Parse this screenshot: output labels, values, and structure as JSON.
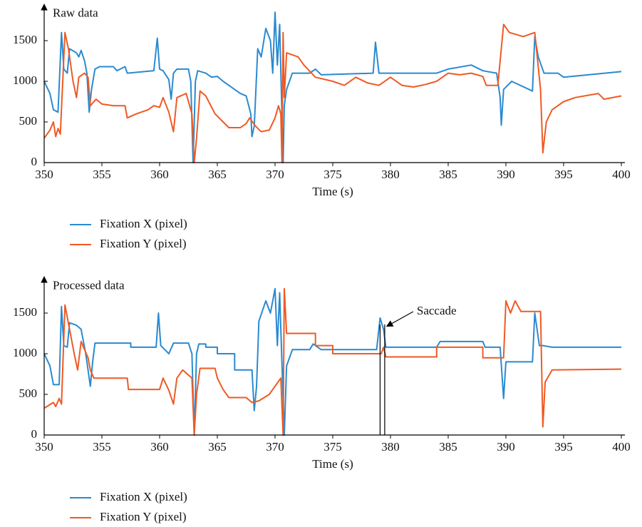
{
  "chart_data": [
    {
      "type": "line",
      "title": "Raw data",
      "xlabel": "Time (s)",
      "xlim": [
        350,
        400
      ],
      "ylim": [
        0,
        1900
      ],
      "xticks": [
        350,
        355,
        360,
        365,
        370,
        375,
        380,
        385,
        390,
        395,
        400
      ],
      "yticks": [
        0,
        500,
        1000,
        1500
      ],
      "series": [
        {
          "name": "Fixation X (pixel)",
          "color": "#2a8ad0",
          "x": [
            350,
            350.5,
            350.8,
            351.2,
            351.5,
            351.7,
            352,
            352.2,
            352.8,
            353,
            353.2,
            353.5,
            353.7,
            353.9,
            354.1,
            354.4,
            354.8,
            356,
            356.3,
            357,
            357.2,
            359.5,
            359.8,
            360,
            360.3,
            360.8,
            361,
            361.2,
            361.5,
            362.5,
            362.7,
            362.9,
            363.1,
            363.3,
            364,
            364.5,
            365,
            365.5,
            366,
            366.5,
            367,
            367.5,
            367.9,
            368,
            368.2,
            368.5,
            368.8,
            369.2,
            369.6,
            369.8,
            370,
            370.2,
            370.4,
            370.7,
            370.8,
            371,
            371.5,
            373,
            373.5,
            374,
            378.5,
            378.7,
            379,
            384,
            385,
            387,
            388,
            389.2,
            389.5,
            389.6,
            389.8,
            390.5,
            392.3,
            392.5,
            392.8,
            393.3,
            394.5,
            395,
            400
          ],
          "values": [
            1000,
            850,
            650,
            620,
            1600,
            1150,
            1100,
            1400,
            1350,
            1300,
            1380,
            1250,
            1100,
            620,
            900,
            1150,
            1180,
            1180,
            1130,
            1180,
            1100,
            1130,
            1530,
            1150,
            1130,
            1020,
            780,
            1100,
            1150,
            1150,
            1000,
            0,
            1000,
            1130,
            1100,
            1050,
            1060,
            1000,
            950,
            900,
            850,
            820,
            600,
            320,
            450,
            1400,
            1300,
            1650,
            1500,
            1100,
            1850,
            1200,
            1700,
            0,
            700,
            900,
            1100,
            1100,
            1150,
            1080,
            1100,
            1480,
            1100,
            1100,
            1150,
            1200,
            1130,
            1100,
            800,
            460,
            900,
            1000,
            880,
            1550,
            1300,
            1100,
            1100,
            1050,
            1120
          ]
        },
        {
          "name": "Fixation Y (pixel)",
          "color": "#ef5a24",
          "x": [
            350,
            350.5,
            350.8,
            351,
            351.2,
            351.4,
            351.8,
            352.1,
            352.5,
            352.8,
            353,
            353.5,
            353.8,
            354,
            354.5,
            355,
            356,
            357,
            357.2,
            358,
            359,
            359.5,
            360,
            360.3,
            360.8,
            361.2,
            361.5,
            362.3,
            362.8,
            363,
            363.2,
            363.5,
            364,
            364.8,
            365.5,
            366,
            367,
            367.5,
            367.8,
            368.3,
            368.8,
            369.5,
            370,
            370.3,
            370.5,
            370.6,
            370.7,
            370.8,
            371,
            372,
            372.5,
            373.5,
            375,
            376,
            377,
            378,
            379,
            380,
            381,
            382,
            383,
            384,
            385,
            386,
            387,
            388,
            388.3,
            389.3,
            389.8,
            390.3,
            391.5,
            392.5,
            393,
            393.2,
            393.5,
            394,
            395,
            396,
            398,
            398.5,
            400
          ],
          "values": [
            300,
            400,
            500,
            320,
            420,
            350,
            1600,
            1400,
            1000,
            800,
            1050,
            1100,
            1050,
            700,
            780,
            720,
            700,
            700,
            550,
            600,
            650,
            700,
            680,
            800,
            620,
            380,
            800,
            850,
            600,
            0,
            300,
            880,
            820,
            600,
            500,
            430,
            430,
            480,
            550,
            450,
            380,
            400,
            550,
            700,
            600,
            0,
            1600,
            800,
            1350,
            1300,
            1200,
            1050,
            1000,
            950,
            1050,
            980,
            950,
            1050,
            950,
            930,
            960,
            1000,
            1100,
            1080,
            1100,
            1060,
            950,
            950,
            1700,
            1600,
            1550,
            1600,
            900,
            120,
            500,
            650,
            750,
            800,
            850,
            780,
            820
          ]
        }
      ]
    },
    {
      "type": "line",
      "title": "Processed data",
      "xlabel": "Time (s)",
      "xlim": [
        350,
        400
      ],
      "ylim": [
        0,
        1900
      ],
      "xticks": [
        350,
        355,
        360,
        365,
        370,
        375,
        380,
        385,
        390,
        395,
        400
      ],
      "yticks": [
        0,
        500,
        1000,
        1500
      ],
      "annotation": {
        "text": "Saccade",
        "x": [
          379.1,
          379.5
        ]
      },
      "series": [
        {
          "name": "Fixation X (pixel)",
          "color": "#2a8ad0",
          "x": [
            350,
            350.5,
            350.8,
            351.3,
            351.5,
            351.7,
            352,
            352.2,
            352.8,
            353.2,
            353.6,
            354,
            354.2,
            354.4,
            357.5,
            357.5,
            359.7,
            359.9,
            360.1,
            360.8,
            361.2,
            362.5,
            362.8,
            363,
            363.2,
            363.4,
            364,
            364,
            365,
            365,
            366.5,
            366.5,
            368,
            368.2,
            368.4,
            368.6,
            369.2,
            369.6,
            370,
            370.2,
            370.4,
            370.8,
            371,
            371.5,
            373,
            373.3,
            374,
            378.8,
            379.1,
            379.4,
            379.6,
            384,
            384.3,
            388,
            388.2,
            389.5,
            389.8,
            390,
            392.3,
            392.5,
            392.9,
            393.2,
            394,
            400
          ],
          "values": [
            1000,
            850,
            620,
            620,
            1580,
            1100,
            1080,
            1380,
            1350,
            1300,
            1000,
            600,
            900,
            1130,
            1130,
            1080,
            1080,
            1500,
            1100,
            1000,
            1130,
            1130,
            1000,
            0,
            1000,
            1120,
            1120,
            1080,
            1080,
            1000,
            1000,
            800,
            800,
            300,
            600,
            1400,
            1650,
            1500,
            1800,
            1100,
            1750,
            0,
            850,
            1050,
            1050,
            1120,
            1050,
            1050,
            1440,
            1300,
            1080,
            1080,
            1150,
            1150,
            1080,
            1080,
            450,
            900,
            900,
            1500,
            1100,
            1100,
            1080,
            1080
          ]
        },
        {
          "name": "Fixation Y (pixel)",
          "color": "#ef5a24",
          "x": [
            350,
            350.8,
            351,
            351.3,
            351.5,
            351.8,
            352.2,
            352.6,
            352.9,
            353.2,
            353.8,
            354,
            354.3,
            357.2,
            357.3,
            360,
            360.3,
            360.8,
            361.2,
            361.5,
            362,
            362.8,
            363,
            363.2,
            363.5,
            364.8,
            365,
            365.5,
            366,
            367.5,
            368,
            368.6,
            369.5,
            370,
            370.5,
            370.7,
            370.8,
            371,
            373.5,
            373.5,
            375,
            375,
            379.2,
            379.4,
            379.6,
            384,
            384,
            388,
            388,
            389.8,
            390,
            390.4,
            390.8,
            391.3,
            393,
            393.2,
            393.4,
            394,
            400
          ],
          "values": [
            330,
            400,
            350,
            450,
            380,
            1600,
            1300,
            1000,
            800,
            1150,
            950,
            800,
            700,
            700,
            560,
            560,
            700,
            550,
            380,
            700,
            800,
            700,
            0,
            500,
            820,
            820,
            700,
            560,
            460,
            460,
            400,
            420,
            500,
            600,
            700,
            0,
            1800,
            1250,
            1250,
            1100,
            1100,
            1000,
            1000,
            1080,
            960,
            960,
            1080,
            1080,
            950,
            950,
            1650,
            1500,
            1650,
            1520,
            1520,
            100,
            650,
            800,
            810
          ]
        }
      ]
    }
  ]
}
